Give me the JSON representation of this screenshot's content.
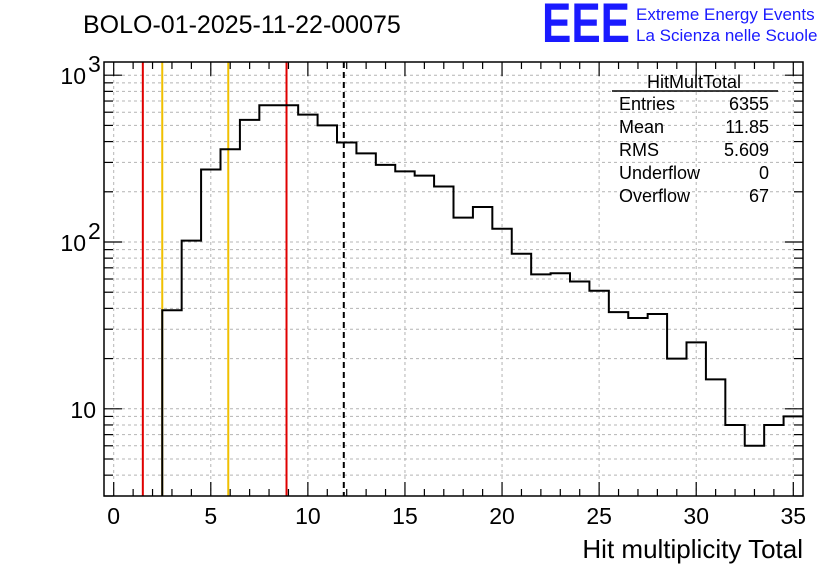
{
  "chart_data": {
    "type": "bar",
    "title": "BOLO-01-2025-11-22-00075",
    "logo": {
      "text": "EEE",
      "line1": "Extreme Energy Events",
      "line2": "La Scienza nelle Scuole",
      "color": "#1a1aff"
    },
    "xlabel": "Hit multiplicity Total",
    "ylabel": "",
    "xlim": [
      -0.5,
      35.5
    ],
    "ylim": [
      3,
      1200
    ],
    "yscale": "log",
    "grid": true,
    "x_ticks": [
      0,
      5,
      10,
      15,
      20,
      25,
      30,
      35
    ],
    "y_tick_labels": [
      {
        "value": 10,
        "base": "10",
        "exp": ""
      },
      {
        "value": 100,
        "base": "10",
        "exp": "2"
      },
      {
        "value": 1000,
        "base": "10",
        "exp": "3"
      }
    ],
    "bin_width": 1,
    "bin_low_edges": [
      2.5,
      3.5,
      4.5,
      5.5,
      6.5,
      7.5,
      8.5,
      9.5,
      10.5,
      11.5,
      12.5,
      13.5,
      14.5,
      15.5,
      16.5,
      17.5,
      18.5,
      19.5,
      20.5,
      21.5,
      22.5,
      23.5,
      24.5,
      25.5,
      26.5,
      27.5,
      28.5,
      29.5,
      30.5,
      31.5,
      32.5,
      33.5,
      34.5
    ],
    "series": [
      {
        "values": [
          39,
          102,
          272,
          360,
          540,
          660,
          660,
          580,
          500,
          395,
          340,
          290,
          265,
          250,
          215,
          140,
          162,
          120,
          85,
          64,
          65,
          58,
          51,
          38,
          35,
          37,
          20,
          25,
          15,
          8,
          6,
          8,
          9
        ],
        "color": "#000000"
      }
    ],
    "vertical_lines": [
      {
        "x": 1.5,
        "color": "#e00000",
        "style": "solid"
      },
      {
        "x": 2.5,
        "color": "#f0c000",
        "style": "solid"
      },
      {
        "x": 5.9,
        "color": "#f0c000",
        "style": "solid"
      },
      {
        "x": 8.9,
        "color": "#e00000",
        "style": "solid"
      },
      {
        "x": 11.85,
        "color": "#000000",
        "style": "dashed"
      }
    ],
    "stats_box": {
      "name": "HitMultTotal",
      "rows": [
        {
          "label": "Entries",
          "value": "6355"
        },
        {
          "label": "Mean",
          "value": "11.85"
        },
        {
          "label": "RMS",
          "value": "5.609"
        },
        {
          "label": "Underflow",
          "value": "0"
        },
        {
          "label": "Overflow",
          "value": "67"
        }
      ]
    }
  }
}
